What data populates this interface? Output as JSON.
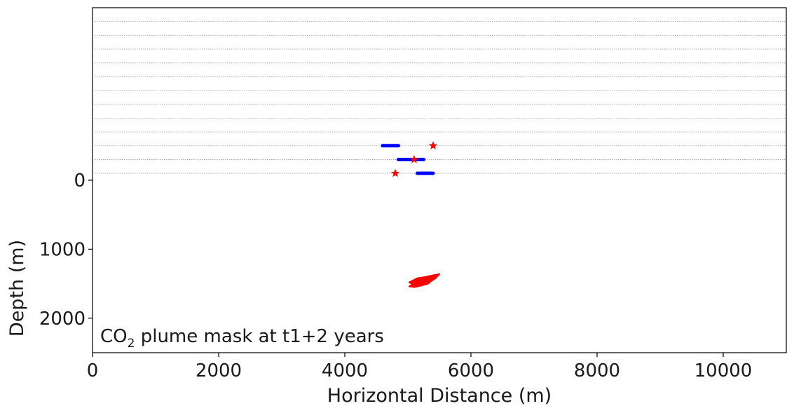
{
  "chart_data": {
    "type": "scatter",
    "title": "",
    "xlabel": "Horizontal Distance (m)",
    "ylabel": "Depth (m)",
    "xlim": [
      0,
      11000
    ],
    "ylim": [
      2500,
      -2500
    ],
    "y_axis_inverted": true,
    "grid": false,
    "legend": "none",
    "x_ticks": [
      0,
      2000,
      4000,
      6000,
      8000,
      10000
    ],
    "x_tick_labels": [
      "0",
      "2000",
      "4000",
      "6000",
      "8000",
      "10000"
    ],
    "y_ticks": [
      0,
      1000,
      2000
    ],
    "y_tick_labels": [
      "0",
      "1000",
      "2000"
    ],
    "annotation": {
      "prefix": "CO",
      "subscript": "2",
      "suffix": " plume mask at t1+2 years"
    },
    "colors": {
      "receivers": "#0000ff",
      "sources": "#ff0000",
      "plume": "#ff0000",
      "layer_lines": "#b0b0b0"
    },
    "layer_line_depths": [
      -2300,
      -2100,
      -1900,
      -1700,
      -1500,
      -1300,
      -1100,
      -900,
      -700,
      -500,
      -300,
      -100
    ],
    "series": [
      {
        "marker": "dot",
        "color": "#0000ff",
        "segments": [
          {
            "x_start": 4600,
            "x_end": 4850,
            "depth": -500
          },
          {
            "x_start": 4850,
            "x_end": 5250,
            "depth": -300
          },
          {
            "x_start": 5150,
            "x_end": 5400,
            "depth": -100
          }
        ]
      },
      {
        "marker": "star",
        "color": "#ff0000",
        "points": [
          {
            "x": 5400,
            "y": -500
          },
          {
            "x": 5100,
            "y": -300
          },
          {
            "x": 4800,
            "y": -100
          }
        ]
      },
      {
        "marker": "region",
        "color": "#ff0000",
        "outline": [
          [
            5020,
            1480
          ],
          [
            5150,
            1420
          ],
          [
            5280,
            1400
          ],
          [
            5380,
            1380
          ],
          [
            5500,
            1360
          ],
          [
            5440,
            1420
          ],
          [
            5360,
            1470
          ],
          [
            5320,
            1500
          ],
          [
            5200,
            1530
          ],
          [
            5100,
            1550
          ],
          [
            5020,
            1540
          ],
          [
            5080,
            1500
          ],
          [
            5040,
            1490
          ]
        ]
      }
    ]
  }
}
